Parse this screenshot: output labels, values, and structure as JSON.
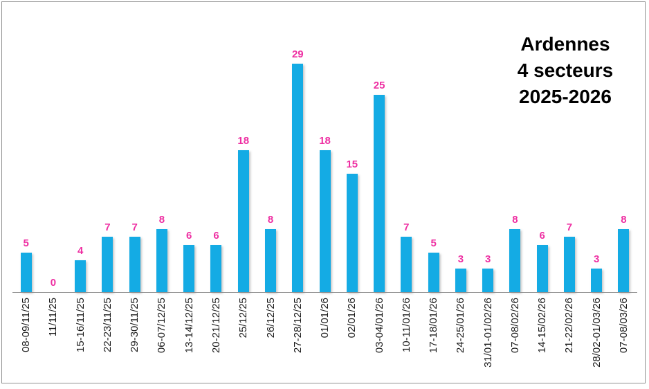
{
  "window": {
    "background": "#ffffff",
    "border_color": "#8f8f8f"
  },
  "title": {
    "lines": [
      "Ardennes",
      "4 secteurs",
      "2025-2026"
    ],
    "color": "#000000"
  },
  "chart_data": {
    "type": "bar",
    "title": "Ardennes 4 secteurs 2025-2026",
    "xlabel": "",
    "ylabel": "",
    "categories": [
      "08-09/11/25",
      "11/11/25",
      "15-16/11/25",
      "22-23/11/25",
      "29-30/11/25",
      "06-07/12/25",
      "13-14/12/25",
      "20-21/12/25",
      "25/12/25",
      "26/12/25",
      "27-28/12/25",
      "01/01/26",
      "02/01/26",
      "03-04/01/26",
      "10-11/01/26",
      "17-18/01/26",
      "24-25/01/26",
      "31/01-01/02/26",
      "07-08/02/26",
      "14-15/02/26",
      "21-22/02/26",
      "28/02-01/03/26",
      "07-08/03/26"
    ],
    "values": [
      5,
      0,
      4,
      7,
      7,
      8,
      6,
      6,
      18,
      8,
      29,
      18,
      15,
      25,
      7,
      5,
      3,
      3,
      8,
      6,
      7,
      3,
      8
    ],
    "ylim": [
      0,
      36
    ],
    "grid": false,
    "legend": "none",
    "data_labels": true,
    "bar_color": "#14ABE4",
    "value_label_color": "#EE2FA2",
    "axis_line_color": "#919191",
    "tick_label_color": "#1a1a1a",
    "x_tick_rotation_degrees": 90
  }
}
